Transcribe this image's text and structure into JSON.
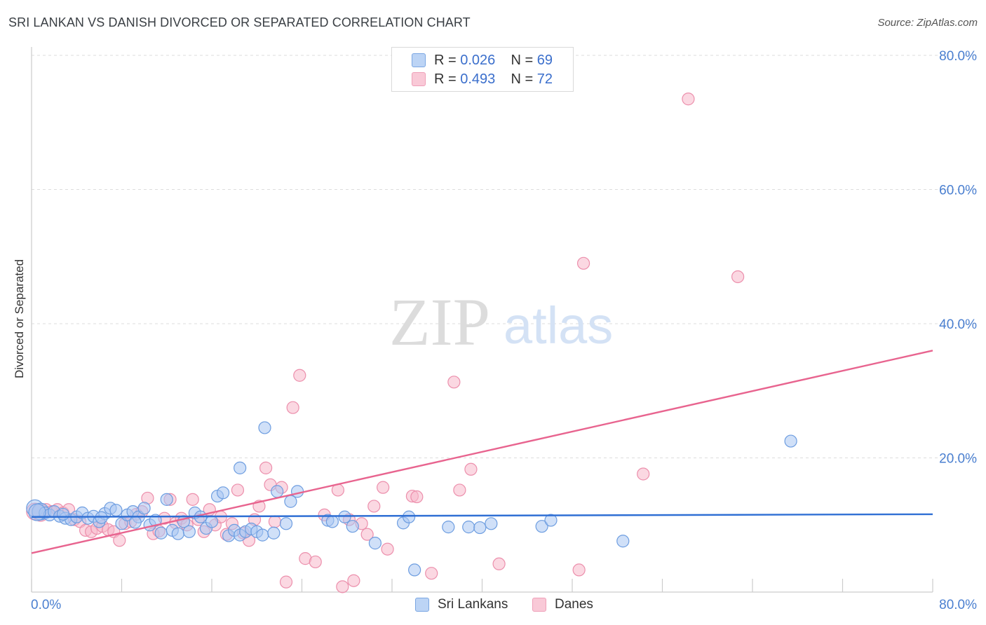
{
  "title": "SRI LANKAN VS DANISH DIVORCED OR SEPARATED CORRELATION CHART",
  "source": "Source: ZipAtlas.com",
  "watermark": {
    "zip": "ZIP",
    "atlas": "atlas"
  },
  "legend": {
    "rows": [
      {
        "r_label": "R =",
        "r_value": "0.026",
        "n_label": "N =",
        "n_value": "69"
      },
      {
        "r_label": "R =",
        "r_value": "0.493",
        "n_label": "N =",
        "n_value": "72"
      }
    ]
  },
  "bottom_legend": [
    "Sri Lankans",
    "Danes"
  ],
  "colors": {
    "blue_fill": "#a9c7f2",
    "blue_stroke": "#6d9de0",
    "blue_line": "#2f6fd4",
    "pink_fill": "#f7b8cb",
    "pink_stroke": "#ec8fac",
    "pink_line": "#e8648f",
    "tick_label": "#4a7fd0",
    "grid": "#dcdcdc"
  },
  "chart_data": {
    "type": "scatter",
    "title": "SRI LANKAN VS DANISH DIVORCED OR SEPARATED CORRELATION CHART",
    "xlabel": "",
    "ylabel": "Divorced or Separated",
    "xlim": [
      0,
      80
    ],
    "ylim": [
      0,
      80
    ],
    "x_tick_labels": [
      "0.0%",
      "80.0%"
    ],
    "y_tick_labels": [
      "20.0%",
      "40.0%",
      "60.0%",
      "80.0%"
    ],
    "y_ticks": [
      20,
      40,
      60,
      80
    ],
    "grid": true,
    "legend_position": "top-center",
    "series": [
      {
        "name": "Sri Lankans",
        "R": 0.026,
        "N": 69,
        "trend": {
          "x": [
            0,
            80
          ],
          "y": [
            11.2,
            11.6
          ]
        },
        "points": [
          [
            0.3,
            12.5
          ],
          [
            0.8,
            12.0
          ],
          [
            1.2,
            11.8
          ],
          [
            1.6,
            11.5
          ],
          [
            2.0,
            12.0
          ],
          [
            2.5,
            11.3
          ],
          [
            3.0,
            11.0
          ],
          [
            3.5,
            10.8
          ],
          [
            4.0,
            11.2
          ],
          [
            4.5,
            11.8
          ],
          [
            5.0,
            11.0
          ],
          [
            5.5,
            11.3
          ],
          [
            6.0,
            10.5
          ],
          [
            6.5,
            11.7
          ],
          [
            7.0,
            12.5
          ],
          [
            7.5,
            12.2
          ],
          [
            8.0,
            10.2
          ],
          [
            8.5,
            11.5
          ],
          [
            9.0,
            12.0
          ],
          [
            9.5,
            11.2
          ],
          [
            10.0,
            12.5
          ],
          [
            10.5,
            10.0
          ],
          [
            11.0,
            10.7
          ],
          [
            11.5,
            8.8
          ],
          [
            12.0,
            13.8
          ],
          [
            12.5,
            9.2
          ],
          [
            13.0,
            8.7
          ],
          [
            13.5,
            10.5
          ],
          [
            14.0,
            9.0
          ],
          [
            14.5,
            11.8
          ],
          [
            15.0,
            11.2
          ],
          [
            15.5,
            9.5
          ],
          [
            16.0,
            10.5
          ],
          [
            16.5,
            14.3
          ],
          [
            17.0,
            14.8
          ],
          [
            17.5,
            8.4
          ],
          [
            18.0,
            9.2
          ],
          [
            18.5,
            8.5
          ],
          [
            18.5,
            18.5
          ],
          [
            19.0,
            9.0
          ],
          [
            19.5,
            9.4
          ],
          [
            20.0,
            9.0
          ],
          [
            20.5,
            8.5
          ],
          [
            20.7,
            24.5
          ],
          [
            21.5,
            8.8
          ],
          [
            21.8,
            15.0
          ],
          [
            22.6,
            10.2
          ],
          [
            23.0,
            13.5
          ],
          [
            23.6,
            15.0
          ],
          [
            26.3,
            10.7
          ],
          [
            26.7,
            10.5
          ],
          [
            27.8,
            11.2
          ],
          [
            28.5,
            9.8
          ],
          [
            30.5,
            7.3
          ],
          [
            33.0,
            10.3
          ],
          [
            33.5,
            11.2
          ],
          [
            34.0,
            3.3
          ],
          [
            37.0,
            9.7
          ],
          [
            38.8,
            9.7
          ],
          [
            39.8,
            9.6
          ],
          [
            40.8,
            10.2
          ],
          [
            45.3,
            9.8
          ],
          [
            46.1,
            10.7
          ],
          [
            52.5,
            7.6
          ],
          [
            67.4,
            22.5
          ],
          [
            0.5,
            11.9
          ],
          [
            2.8,
            11.6
          ],
          [
            6.2,
            11.1
          ],
          [
            9.2,
            10.4
          ]
        ]
      },
      {
        "name": "Danes",
        "R": 0.493,
        "N": 72,
        "trend": {
          "x": [
            0,
            80
          ],
          "y": [
            5.8,
            36.0
          ]
        },
        "points": [
          [
            0.3,
            12.0
          ],
          [
            0.8,
            11.8
          ],
          [
            1.3,
            12.3
          ],
          [
            1.8,
            12.0
          ],
          [
            2.3,
            12.3
          ],
          [
            2.8,
            11.8
          ],
          [
            3.3,
            12.3
          ],
          [
            3.8,
            10.8
          ],
          [
            4.3,
            10.5
          ],
          [
            4.8,
            9.2
          ],
          [
            5.3,
            9.0
          ],
          [
            5.8,
            9.5
          ],
          [
            6.3,
            9.8
          ],
          [
            6.8,
            9.3
          ],
          [
            7.3,
            9.0
          ],
          [
            7.8,
            7.7
          ],
          [
            8.3,
            10.2
          ],
          [
            8.8,
            10.5
          ],
          [
            9.3,
            11.6
          ],
          [
            9.8,
            12.0
          ],
          [
            10.3,
            14.0
          ],
          [
            10.8,
            8.7
          ],
          [
            11.3,
            9.1
          ],
          [
            11.8,
            11.0
          ],
          [
            12.3,
            13.8
          ],
          [
            12.8,
            10.3
          ],
          [
            13.3,
            11.0
          ],
          [
            13.8,
            10.0
          ],
          [
            14.3,
            13.8
          ],
          [
            14.8,
            10.8
          ],
          [
            15.3,
            9.0
          ],
          [
            15.8,
            12.3
          ],
          [
            16.3,
            10.0
          ],
          [
            16.8,
            11.2
          ],
          [
            17.3,
            8.6
          ],
          [
            17.8,
            10.2
          ],
          [
            18.3,
            15.2
          ],
          [
            18.8,
            8.8
          ],
          [
            19.3,
            7.7
          ],
          [
            19.8,
            10.8
          ],
          [
            20.2,
            12.8
          ],
          [
            20.8,
            18.5
          ],
          [
            21.2,
            16.0
          ],
          [
            21.6,
            10.5
          ],
          [
            22.2,
            15.6
          ],
          [
            22.6,
            1.5
          ],
          [
            23.2,
            27.5
          ],
          [
            23.8,
            32.3
          ],
          [
            24.3,
            5.0
          ],
          [
            25.2,
            4.5
          ],
          [
            26.0,
            11.5
          ],
          [
            27.2,
            15.2
          ],
          [
            27.6,
            0.8
          ],
          [
            28.2,
            10.8
          ],
          [
            28.6,
            1.7
          ],
          [
            29.3,
            10.2
          ],
          [
            29.8,
            8.6
          ],
          [
            30.4,
            12.8
          ],
          [
            31.2,
            15.6
          ],
          [
            31.6,
            6.4
          ],
          [
            33.8,
            14.3
          ],
          [
            34.2,
            14.2
          ],
          [
            35.5,
            2.8
          ],
          [
            37.5,
            31.3
          ],
          [
            38.0,
            15.2
          ],
          [
            39.0,
            18.3
          ],
          [
            41.5,
            4.2
          ],
          [
            49.0,
            49.0
          ],
          [
            48.6,
            3.3
          ],
          [
            54.3,
            17.6
          ],
          [
            58.3,
            73.5
          ],
          [
            62.7,
            47.0
          ]
        ]
      }
    ]
  }
}
